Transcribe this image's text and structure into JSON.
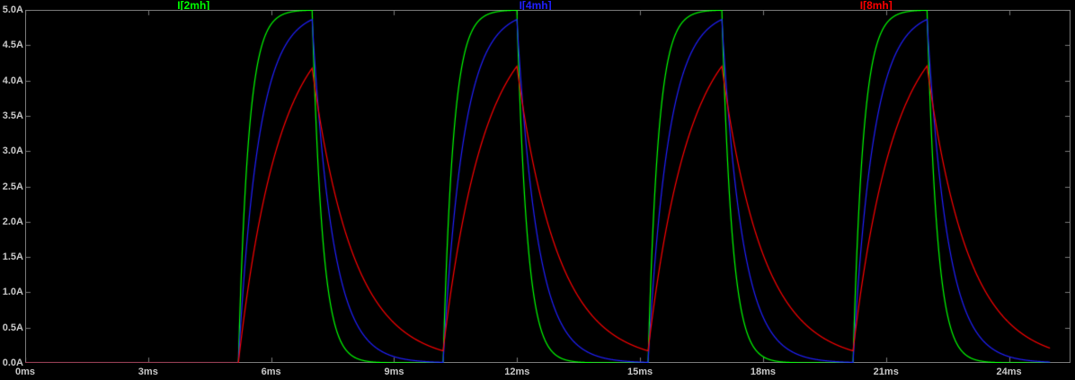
{
  "window": {
    "background_color": "#000000"
  },
  "chart_data": {
    "type": "line",
    "title": "",
    "x_unit": "ms",
    "y_unit": "A",
    "x_range": [
      0,
      25.5
    ],
    "y_range": [
      0,
      5
    ],
    "x_tick_step": 3,
    "y_tick_step": 0.5,
    "x_tick_labels": [
      "0ms",
      "3ms",
      "6ms",
      "9ms",
      "12ms",
      "15ms",
      "18ms",
      "21ms",
      "24ms"
    ],
    "y_tick_labels": [
      "0.0A",
      "0.5A",
      "1.0A",
      "1.5A",
      "2.0A",
      "2.5A",
      "3.0A",
      "3.5A",
      "4.0A",
      "4.5A",
      "5.0A"
    ],
    "grid": false,
    "legend_position": "top",
    "axis_color": "#7a7a7a",
    "text_color": "#c8c8c8",
    "series": [
      {
        "name": "I[2mh]",
        "color": "#00FF00",
        "inductance_mH": 2,
        "tau_ms": 0.25,
        "peak_a": 5.0,
        "baseline_a": 0.0
      },
      {
        "name": "I[4mh]",
        "color": "#2020FF",
        "inductance_mH": 4,
        "tau_ms": 0.5,
        "peak_a": 4.87,
        "baseline_a": 0.01
      },
      {
        "name": "I[8mh]",
        "color": "#FF0000",
        "inductance_mH": 8,
        "tau_ms": 1.0,
        "peak_a": 4.3,
        "baseline_a": 0.2
      }
    ],
    "stimulus": {
      "type": "pulse",
      "level_a": 5,
      "delay_ms": 5.2,
      "on_ms": 1.8,
      "period_ms": 5,
      "sim_end_ms": 25,
      "rise_times_ms": [
        5.2,
        10.2,
        15.2,
        20.2
      ],
      "fall_times_ms": [
        7,
        12,
        17,
        22
      ]
    }
  }
}
